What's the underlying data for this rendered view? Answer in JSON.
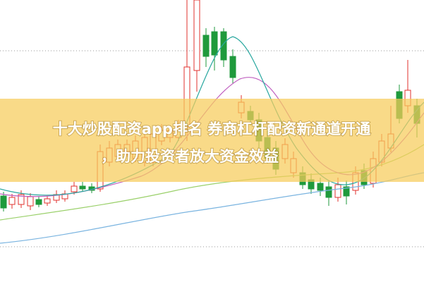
{
  "banner": {
    "title_lines": [
      "十大炒股配资app排名 券商杠杆配资新通道开通",
      "，助力投资者放大资金效益"
    ]
  }
}
